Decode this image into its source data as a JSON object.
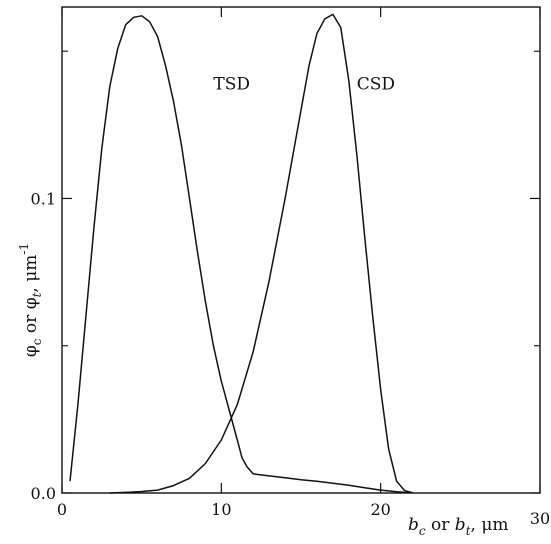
{
  "chart_data": {
    "type": "line",
    "xlim": [
      0,
      30
    ],
    "ylim": [
      0,
      0.165
    ],
    "x_ticks": [
      0,
      10,
      20,
      30
    ],
    "x_tick_labels": [
      "0",
      "10",
      "20",
      "30"
    ],
    "y_ticks": [
      0.0,
      0.1
    ],
    "y_tick_labels": [
      "0.0",
      "0.1"
    ],
    "y_minor_ticks": [
      0.05,
      0.15
    ],
    "xlabel": {
      "var1": "b",
      "sub1": "c",
      "mid": " or ",
      "var2": "b",
      "sub2": "t",
      "unit": ", μm"
    },
    "ylabel": {
      "var1": "φ",
      "sub1": "c",
      "mid": " or ",
      "var2": "φ",
      "sub2": "t",
      "unit": ", μm",
      "sup": "-1"
    },
    "grid": false,
    "series": [
      {
        "name": "TSD",
        "x": [
          0.5,
          1,
          1.5,
          2,
          2.5,
          3,
          3.5,
          4,
          4.5,
          5,
          5.5,
          6,
          6.5,
          7,
          7.5,
          8,
          8.5,
          9,
          9.5,
          10,
          10.5,
          11,
          11.3,
          11.6,
          12,
          13,
          14,
          15,
          16,
          17,
          18,
          19,
          20,
          21,
          21.5,
          22
        ],
        "values": [
          0.004,
          0.03,
          0.06,
          0.09,
          0.117,
          0.138,
          0.151,
          0.159,
          0.1615,
          0.162,
          0.16,
          0.155,
          0.145,
          0.133,
          0.118,
          0.1,
          0.082,
          0.065,
          0.05,
          0.038,
          0.028,
          0.018,
          0.012,
          0.009,
          0.0065,
          0.0058,
          0.0052,
          0.0045,
          0.004,
          0.0033,
          0.0026,
          0.0018,
          0.001,
          0.0004,
          0.0002,
          0.0001
        ]
      },
      {
        "name": "CSD",
        "x": [
          3,
          4,
          5,
          6,
          7,
          8,
          9,
          10,
          11,
          12,
          13,
          14,
          15,
          15.5,
          16,
          16.5,
          17,
          17.5,
          18,
          18.5,
          19,
          19.5,
          20,
          20.5,
          21,
          21.5,
          22
        ],
        "values": [
          0,
          0.0002,
          0.0005,
          0.001,
          0.0025,
          0.005,
          0.01,
          0.018,
          0.03,
          0.048,
          0.072,
          0.1,
          0.13,
          0.145,
          0.156,
          0.161,
          0.1625,
          0.158,
          0.14,
          0.115,
          0.087,
          0.06,
          0.035,
          0.015,
          0.004,
          0.0008,
          0.0001
        ]
      }
    ],
    "annotations": [
      {
        "text": "TSD",
        "x": 9.5,
        "y": 0.137
      },
      {
        "text": "CSD",
        "x": 18.5,
        "y": 0.137
      }
    ]
  }
}
